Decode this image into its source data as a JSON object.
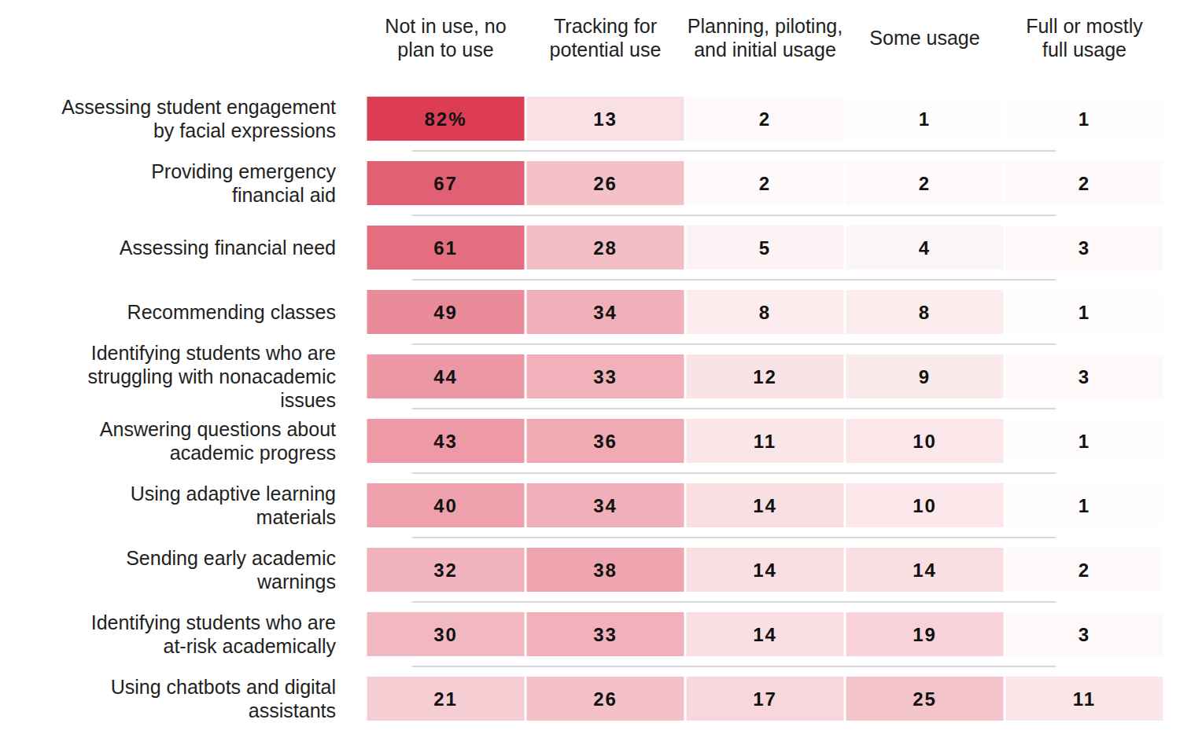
{
  "chart_data": {
    "type": "heatmap",
    "x_categories": [
      "Not in use, no plan to use",
      "Tracking for potential use",
      "Planning, piloting, and initial usage",
      "Some usage",
      "Full or mostly full usage"
    ],
    "y_categories": [
      "Assessing student engagement by facial expressions",
      "Providing emergency financial aid",
      "Assessing financial need",
      "Recommending classes",
      "Identifying students who are struggling with nonacademic issues",
      "Answering questions about academic progress",
      "Using adaptive learning materials",
      "Sending early academic warnings",
      "Identifying students who are at-risk academically",
      "Using chatbots and digital assistants"
    ],
    "cells": [
      [
        82,
        13,
        2,
        1,
        1
      ],
      [
        67,
        26,
        2,
        2,
        2
      ],
      [
        61,
        28,
        5,
        4,
        3
      ],
      [
        49,
        34,
        8,
        8,
        1
      ],
      [
        44,
        33,
        12,
        9,
        3
      ],
      [
        43,
        36,
        11,
        10,
        1
      ],
      [
        40,
        34,
        14,
        10,
        1
      ],
      [
        32,
        38,
        14,
        14,
        2
      ],
      [
        30,
        33,
        14,
        19,
        3
      ],
      [
        21,
        26,
        17,
        25,
        11
      ]
    ],
    "value_labels": [
      [
        "82%",
        "13",
        "2",
        "1",
        "1"
      ],
      [
        "67",
        "26",
        "2",
        "2",
        "2"
      ],
      [
        "61",
        "28",
        "5",
        "4",
        "3"
      ],
      [
        "49",
        "34",
        "8",
        "8",
        "1"
      ],
      [
        "44",
        "33",
        "12",
        "9",
        "3"
      ],
      [
        "43",
        "36",
        "11",
        "10",
        "1"
      ],
      [
        "40",
        "34",
        "14",
        "10",
        "1"
      ],
      [
        "32",
        "38",
        "14",
        "14",
        "2"
      ],
      [
        "30",
        "33",
        "14",
        "19",
        "3"
      ],
      [
        "21",
        "26",
        "17",
        "25",
        "11"
      ]
    ],
    "color": "#dc3d55",
    "data_labels": true
  }
}
